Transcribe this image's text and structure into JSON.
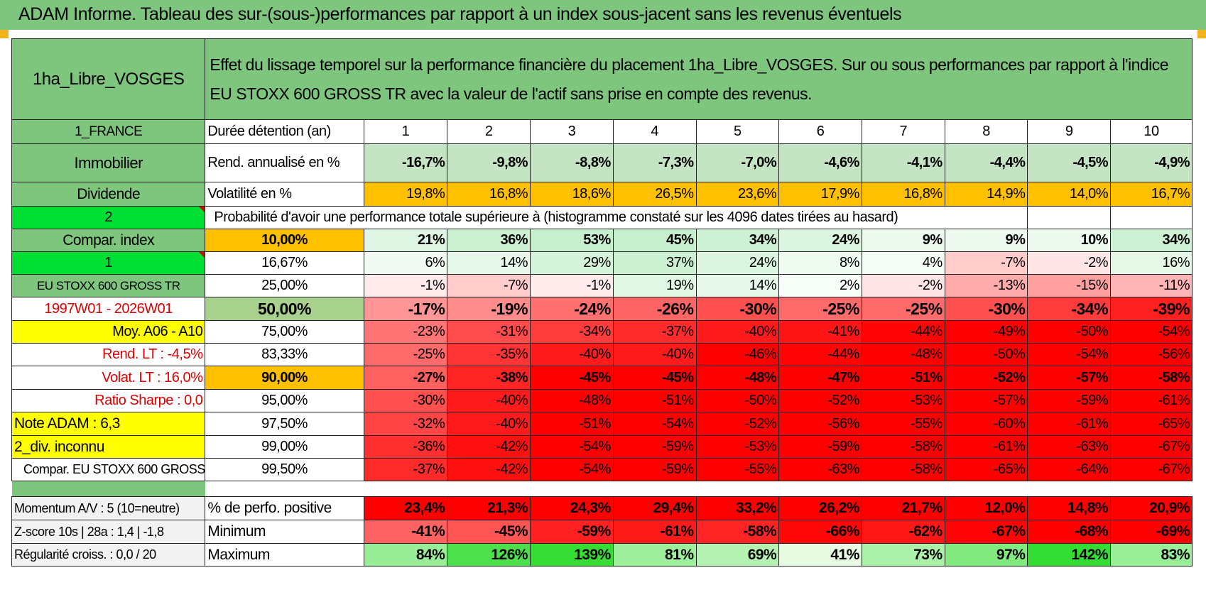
{
  "title": "ADAM Informe. Tableau des sur-(sous-)performances par rapport à un index sous-jacent sans les revenus éventuels",
  "header": {
    "fund": "1ha_Libre_VOSGES",
    "description": "Effet du lissage temporel sur la performance financière du placement 1ha_Libre_VOSGES. Sur ou sous performances par rapport à l'indice EU STOXX 600 GROSS TR avec la valeur de l'actif sans prise en compte des revenus."
  },
  "left_labels": {
    "country": "1_FRANCE",
    "asset_class": "Immobilier",
    "dividend": "Dividende",
    "option_a": "2",
    "compar_index": "Compar. index",
    "option_b": "1",
    "index_name": "EU STOXX 600 GROSS TR",
    "period": "1997W01 - 2026W01",
    "moy": "Moy. A06 - A10",
    "rend_lt": "Rend. LT :    -4,5%",
    "volat_lt": "Volat. LT :    16,0%",
    "sharpe": "Ratio Sharpe :     0,0",
    "note": "Note ADAM : 6,3",
    "div": "2_div. inconnu",
    "compar_full": "Compar. EU STOXX 600 GROSS TR",
    "momentum": "Momentum A/V : 5 (10=neutre)",
    "zscore": "Z-score 10s | 28a : 1,4 | -1,8",
    "regularite": "Régularité croiss. : 0,0 / 20"
  },
  "row_labels": {
    "duree": "Durée détention (an)",
    "rend": "Rend. annualisé en %",
    "vol": "Volatilité en %",
    "proba": "Probabilité d'avoir une performance totale supérieure à (histogramme constaté sur les 4096 dates tirées au hasard)",
    "pos": "% de perfo. positive",
    "min": "Minimum",
    "max": "Maximum"
  },
  "years": [
    "1",
    "2",
    "3",
    "4",
    "5",
    "6",
    "7",
    "8",
    "9",
    "10"
  ],
  "rend": [
    "-16,7%",
    "-9,8%",
    "-8,8%",
    "-7,3%",
    "-7,0%",
    "-4,6%",
    "-4,1%",
    "-4,4%",
    "-4,5%",
    "-4,9%"
  ],
  "vol": [
    "19,8%",
    "16,8%",
    "18,6%",
    "26,5%",
    "23,6%",
    "17,9%",
    "16,8%",
    "14,9%",
    "14,0%",
    "16,7%"
  ],
  "percentiles": [
    {
      "p": "10,00%",
      "vals": [
        "21%",
        "36%",
        "53%",
        "45%",
        "34%",
        "24%",
        "9%",
        "9%",
        "10%",
        "34%"
      ],
      "bold": true,
      "big": false,
      "pcolor": "#ffc000"
    },
    {
      "p": "16,67%",
      "vals": [
        "6%",
        "14%",
        "29%",
        "37%",
        "24%",
        "8%",
        "4%",
        "-7%",
        "-2%",
        "16%"
      ],
      "bold": false,
      "big": false,
      "pcolor": "#ffffff"
    },
    {
      "p": "25,00%",
      "vals": [
        "-1%",
        "-7%",
        "-1%",
        "19%",
        "14%",
        "2%",
        "-2%",
        "-13%",
        "-15%",
        "-11%"
      ],
      "bold": false,
      "big": false,
      "pcolor": "#ffffff"
    },
    {
      "p": "50,00%",
      "vals": [
        "-17%",
        "-19%",
        "-24%",
        "-26%",
        "-30%",
        "-25%",
        "-25%",
        "-30%",
        "-34%",
        "-39%"
      ],
      "bold": true,
      "big": true,
      "pcolor": "#a9d18e"
    },
    {
      "p": "75,00%",
      "vals": [
        "-23%",
        "-31%",
        "-34%",
        "-37%",
        "-40%",
        "-41%",
        "-44%",
        "-49%",
        "-50%",
        "-54%"
      ],
      "bold": false,
      "big": false,
      "pcolor": "#ffffff"
    },
    {
      "p": "83,33%",
      "vals": [
        "-25%",
        "-35%",
        "-40%",
        "-40%",
        "-46%",
        "-44%",
        "-48%",
        "-50%",
        "-54%",
        "-56%"
      ],
      "bold": false,
      "big": false,
      "pcolor": "#ffffff"
    },
    {
      "p": "90,00%",
      "vals": [
        "-27%",
        "-38%",
        "-45%",
        "-45%",
        "-48%",
        "-47%",
        "-51%",
        "-52%",
        "-57%",
        "-58%"
      ],
      "bold": true,
      "big": false,
      "pcolor": "#ffc000"
    },
    {
      "p": "95,00%",
      "vals": [
        "-30%",
        "-40%",
        "-48%",
        "-51%",
        "-50%",
        "-52%",
        "-53%",
        "-57%",
        "-59%",
        "-61%"
      ],
      "bold": false,
      "big": false,
      "pcolor": "#ffffff"
    },
    {
      "p": "97,50%",
      "vals": [
        "-32%",
        "-40%",
        "-51%",
        "-54%",
        "-52%",
        "-56%",
        "-55%",
        "-60%",
        "-61%",
        "-65%"
      ],
      "bold": false,
      "big": false,
      "pcolor": "#ffffff"
    },
    {
      "p": "99,00%",
      "vals": [
        "-36%",
        "-42%",
        "-54%",
        "-59%",
        "-53%",
        "-59%",
        "-58%",
        "-61%",
        "-63%",
        "-67%"
      ],
      "bold": false,
      "big": false,
      "pcolor": "#ffffff"
    },
    {
      "p": "99,50%",
      "vals": [
        "-37%",
        "-42%",
        "-54%",
        "-59%",
        "-55%",
        "-63%",
        "-58%",
        "-65%",
        "-64%",
        "-67%"
      ],
      "bold": false,
      "big": false,
      "pcolor": "#ffffff"
    }
  ],
  "pos": [
    "23,4%",
    "21,3%",
    "24,3%",
    "29,4%",
    "33,2%",
    "26,2%",
    "21,7%",
    "12,0%",
    "14,8%",
    "20,9%"
  ],
  "min": [
    "-41%",
    "-45%",
    "-59%",
    "-61%",
    "-58%",
    "-66%",
    "-62%",
    "-67%",
    "-68%",
    "-69%"
  ],
  "max": [
    "84%",
    "126%",
    "139%",
    "81%",
    "69%",
    "41%",
    "73%",
    "97%",
    "142%",
    "83%"
  ],
  "colors": {
    "header_green": "#7ec67e",
    "bright_green": "#00dd33",
    "yellow": "#ffff00",
    "orange": "#ffc000",
    "light_green": "#a9d18e",
    "red": "#ff0000",
    "label_red": "#dd0000"
  }
}
